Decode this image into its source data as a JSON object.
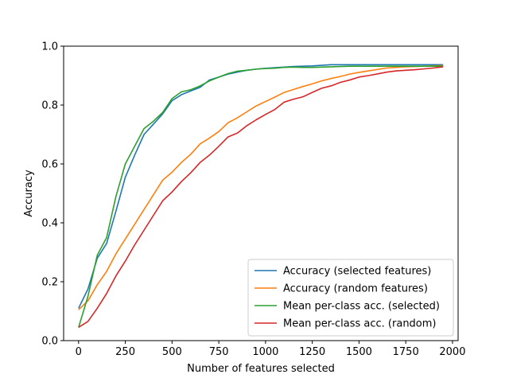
{
  "chart_data": {
    "type": "line",
    "title": "",
    "xlabel": "Number of features selected",
    "ylabel": "Accuracy",
    "xlim": [
      -80,
      2030
    ],
    "ylim": [
      0.0,
      1.0
    ],
    "xticks": [
      0,
      250,
      500,
      750,
      1000,
      1250,
      1500,
      1750,
      2000
    ],
    "yticks": [
      0.0,
      0.2,
      0.4,
      0.6,
      0.8,
      1.0
    ],
    "xtick_labels": [
      "0",
      "250",
      "500",
      "750",
      "1000",
      "1250",
      "1500",
      "1750",
      "2000"
    ],
    "ytick_labels": [
      "0.0",
      "0.2",
      "0.4",
      "0.6",
      "0.8",
      "1.0"
    ],
    "grid": false,
    "legend_position": "lower-right",
    "series": [
      {
        "name": "Accuracy (selected features)",
        "color": "#1f77b4",
        "points": [
          [
            0,
            0.11
          ],
          [
            50,
            0.175
          ],
          [
            100,
            0.28
          ],
          [
            150,
            0.33
          ],
          [
            200,
            0.44
          ],
          [
            250,
            0.555
          ],
          [
            300,
            0.63
          ],
          [
            350,
            0.7
          ],
          [
            400,
            0.735
          ],
          [
            450,
            0.77
          ],
          [
            500,
            0.815
          ],
          [
            550,
            0.835
          ],
          [
            600,
            0.848
          ],
          [
            650,
            0.86
          ],
          [
            700,
            0.885
          ],
          [
            750,
            0.895
          ],
          [
            800,
            0.905
          ],
          [
            850,
            0.912
          ],
          [
            900,
            0.918
          ],
          [
            950,
            0.922
          ],
          [
            1000,
            0.925
          ],
          [
            1050,
            0.927
          ],
          [
            1100,
            0.929
          ],
          [
            1150,
            0.931
          ],
          [
            1200,
            0.932
          ],
          [
            1250,
            0.933
          ],
          [
            1300,
            0.935
          ],
          [
            1350,
            0.937
          ],
          [
            1400,
            0.937
          ],
          [
            1450,
            0.937
          ],
          [
            1500,
            0.937
          ],
          [
            1550,
            0.937
          ],
          [
            1600,
            0.937
          ],
          [
            1650,
            0.937
          ],
          [
            1700,
            0.937
          ],
          [
            1750,
            0.937
          ],
          [
            1800,
            0.937
          ],
          [
            1850,
            0.937
          ],
          [
            1900,
            0.937
          ],
          [
            1950,
            0.937
          ]
        ]
      },
      {
        "name": "Accuracy (random features)",
        "color": "#ff7f0e",
        "points": [
          [
            0,
            0.105
          ],
          [
            50,
            0.135
          ],
          [
            100,
            0.19
          ],
          [
            150,
            0.235
          ],
          [
            200,
            0.295
          ],
          [
            250,
            0.345
          ],
          [
            300,
            0.395
          ],
          [
            350,
            0.445
          ],
          [
            400,
            0.495
          ],
          [
            450,
            0.545
          ],
          [
            500,
            0.572
          ],
          [
            550,
            0.605
          ],
          [
            600,
            0.633
          ],
          [
            650,
            0.668
          ],
          [
            700,
            0.688
          ],
          [
            750,
            0.71
          ],
          [
            800,
            0.74
          ],
          [
            850,
            0.757
          ],
          [
            900,
            0.777
          ],
          [
            950,
            0.797
          ],
          [
            1000,
            0.812
          ],
          [
            1050,
            0.827
          ],
          [
            1100,
            0.843
          ],
          [
            1150,
            0.853
          ],
          [
            1200,
            0.863
          ],
          [
            1250,
            0.872
          ],
          [
            1300,
            0.882
          ],
          [
            1350,
            0.89
          ],
          [
            1400,
            0.897
          ],
          [
            1450,
            0.905
          ],
          [
            1500,
            0.911
          ],
          [
            1550,
            0.916
          ],
          [
            1600,
            0.921
          ],
          [
            1650,
            0.926
          ],
          [
            1700,
            0.928
          ],
          [
            1750,
            0.93
          ],
          [
            1800,
            0.931
          ],
          [
            1850,
            0.932
          ],
          [
            1900,
            0.933
          ],
          [
            1950,
            0.934
          ]
        ]
      },
      {
        "name": "Mean per-class acc. (selected)",
        "color": "#2ca02c",
        "points": [
          [
            0,
            0.045
          ],
          [
            50,
            0.15
          ],
          [
            100,
            0.29
          ],
          [
            150,
            0.35
          ],
          [
            200,
            0.49
          ],
          [
            250,
            0.6
          ],
          [
            300,
            0.66
          ],
          [
            350,
            0.72
          ],
          [
            400,
            0.745
          ],
          [
            450,
            0.775
          ],
          [
            500,
            0.822
          ],
          [
            550,
            0.845
          ],
          [
            600,
            0.852
          ],
          [
            650,
            0.865
          ],
          [
            700,
            0.882
          ],
          [
            750,
            0.895
          ],
          [
            800,
            0.907
          ],
          [
            850,
            0.915
          ],
          [
            900,
            0.918
          ],
          [
            950,
            0.922
          ],
          [
            1000,
            0.924
          ],
          [
            1050,
            0.925
          ],
          [
            1100,
            0.928
          ],
          [
            1150,
            0.929
          ],
          [
            1200,
            0.928
          ],
          [
            1250,
            0.928
          ],
          [
            1300,
            0.929
          ],
          [
            1350,
            0.93
          ],
          [
            1400,
            0.931
          ],
          [
            1450,
            0.932
          ],
          [
            1500,
            0.932
          ],
          [
            1550,
            0.932
          ],
          [
            1600,
            0.932
          ],
          [
            1650,
            0.932
          ],
          [
            1700,
            0.932
          ],
          [
            1750,
            0.932
          ],
          [
            1800,
            0.932
          ],
          [
            1850,
            0.932
          ],
          [
            1900,
            0.932
          ],
          [
            1950,
            0.932
          ]
        ]
      },
      {
        "name": "Mean per-class acc. (random)",
        "color": "#d62728",
        "points": [
          [
            0,
            0.045
          ],
          [
            50,
            0.065
          ],
          [
            100,
            0.11
          ],
          [
            150,
            0.16
          ],
          [
            200,
            0.22
          ],
          [
            250,
            0.27
          ],
          [
            300,
            0.325
          ],
          [
            350,
            0.375
          ],
          [
            400,
            0.425
          ],
          [
            450,
            0.475
          ],
          [
            500,
            0.505
          ],
          [
            550,
            0.54
          ],
          [
            600,
            0.57
          ],
          [
            650,
            0.605
          ],
          [
            700,
            0.63
          ],
          [
            750,
            0.66
          ],
          [
            800,
            0.692
          ],
          [
            850,
            0.705
          ],
          [
            900,
            0.73
          ],
          [
            950,
            0.75
          ],
          [
            1000,
            0.768
          ],
          [
            1050,
            0.785
          ],
          [
            1100,
            0.81
          ],
          [
            1150,
            0.82
          ],
          [
            1200,
            0.828
          ],
          [
            1250,
            0.843
          ],
          [
            1300,
            0.857
          ],
          [
            1350,
            0.865
          ],
          [
            1400,
            0.877
          ],
          [
            1450,
            0.885
          ],
          [
            1500,
            0.895
          ],
          [
            1550,
            0.9
          ],
          [
            1600,
            0.906
          ],
          [
            1650,
            0.912
          ],
          [
            1700,
            0.916
          ],
          [
            1750,
            0.918
          ],
          [
            1800,
            0.92
          ],
          [
            1850,
            0.923
          ],
          [
            1900,
            0.926
          ],
          [
            1950,
            0.93
          ]
        ]
      }
    ]
  }
}
